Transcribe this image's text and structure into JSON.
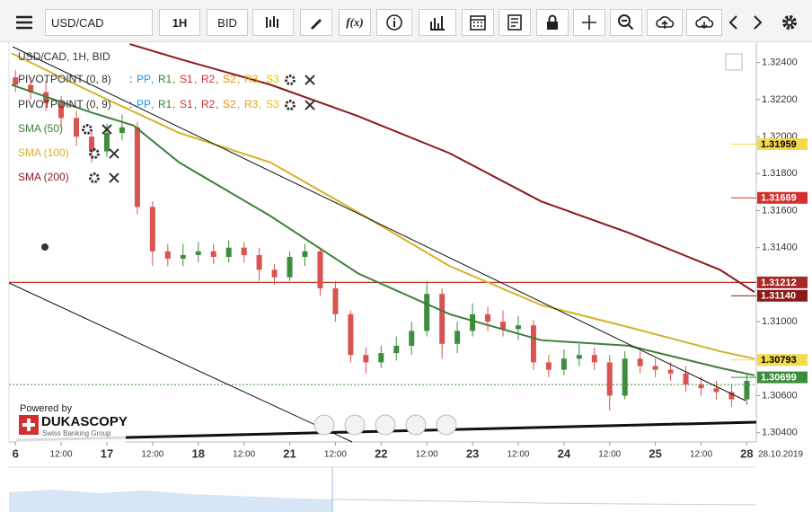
{
  "toolbar": {
    "symbol": "USD/CAD",
    "period": "1H",
    "price_type": "BID",
    "formula": "f(x)"
  },
  "chart_data": {
    "type": "candlestick",
    "title": "USD/CAD, 1H, BID",
    "xlim": [
      -1.7,
      194.5
    ],
    "ylim": [
      1.3035,
      1.3251
    ],
    "xticks": [
      {
        "value": 0,
        "label": "6"
      },
      {
        "value": 12,
        "label": "12:00"
      },
      {
        "value": 24,
        "label": "17"
      },
      {
        "value": 36,
        "label": "12:00"
      },
      {
        "value": 48,
        "label": "18"
      },
      {
        "value": 60,
        "label": "12:00"
      },
      {
        "value": 72,
        "label": "21"
      },
      {
        "value": 84,
        "label": "12:00"
      },
      {
        "value": 96,
        "label": "22"
      },
      {
        "value": 108,
        "label": "12:00"
      },
      {
        "value": 120,
        "label": "23"
      },
      {
        "value": 132,
        "label": "12:00"
      },
      {
        "value": 144,
        "label": "24"
      },
      {
        "value": 156,
        "label": "12:00"
      },
      {
        "value": 168,
        "label": "25"
      },
      {
        "value": 180,
        "label": "12:00"
      },
      {
        "value": 192,
        "label": "28"
      }
    ],
    "x_end_label": "28.10.2019",
    "yticks": [
      {
        "value": 1.324,
        "label": "1.32400"
      },
      {
        "value": 1.322,
        "label": "1.32200"
      },
      {
        "value": 1.32,
        "label": "1.32000"
      },
      {
        "value": 1.318,
        "label": "1.31800"
      },
      {
        "value": 1.316,
        "label": "1.31600"
      },
      {
        "value": 1.314,
        "label": "1.31400"
      },
      {
        "value": 1.31,
        "label": "1.31000"
      },
      {
        "value": 1.306,
        "label": "1.30600"
      },
      {
        "value": 1.304,
        "label": "1.30400"
      }
    ],
    "up_color": "#3c8d3c",
    "down_color": "#d9534f",
    "x": [
      0,
      4,
      8,
      12,
      16,
      20,
      24,
      28,
      32,
      36,
      40,
      44,
      48,
      52,
      56,
      60,
      64,
      68,
      72,
      76,
      80,
      84,
      88,
      92,
      96,
      100,
      104,
      108,
      112,
      116,
      120,
      124,
      128,
      132,
      136,
      140,
      144,
      148,
      152,
      156,
      160,
      164,
      168,
      172,
      176,
      180,
      184,
      188,
      192
    ],
    "open": [
      1.3232,
      1.3228,
      1.3224,
      1.3218,
      1.321,
      1.32,
      1.3192,
      1.3202,
      1.3205,
      1.3162,
      1.3138,
      1.3134,
      1.3136,
      1.3138,
      1.3135,
      1.314,
      1.3136,
      1.3128,
      1.3124,
      1.3135,
      1.3138,
      1.3118,
      1.3104,
      1.3082,
      1.3078,
      1.3083,
      1.3087,
      1.3095,
      1.3115,
      1.3088,
      1.3095,
      1.3104,
      1.31,
      1.3096,
      1.3098,
      1.3078,
      1.3074,
      1.308,
      1.3082,
      1.3078,
      1.306,
      1.308,
      1.3076,
      1.3074,
      1.3072,
      1.3066,
      1.3064,
      1.3062,
      1.3058
    ],
    "high": [
      1.3236,
      1.3232,
      1.323,
      1.3222,
      1.3214,
      1.3204,
      1.3207,
      1.3212,
      1.3208,
      1.3165,
      1.3142,
      1.3142,
      1.3143,
      1.3142,
      1.3144,
      1.3143,
      1.314,
      1.3131,
      1.3138,
      1.3142,
      1.314,
      1.3122,
      1.3106,
      1.3086,
      1.3087,
      1.3092,
      1.31,
      1.3122,
      1.3118,
      1.31,
      1.311,
      1.3108,
      1.3106,
      1.3103,
      1.3101,
      1.3082,
      1.3085,
      1.3088,
      1.3086,
      1.3082,
      1.3084,
      1.3084,
      1.308,
      1.3078,
      1.3076,
      1.307,
      1.3068,
      1.3066,
      1.3072
    ],
    "low": [
      1.3224,
      1.322,
      1.3214,
      1.3205,
      1.3195,
      1.3186,
      1.3189,
      1.3198,
      1.3158,
      1.313,
      1.313,
      1.313,
      1.3132,
      1.3131,
      1.3132,
      1.3132,
      1.3122,
      1.312,
      1.3122,
      1.313,
      1.3114,
      1.31,
      1.3078,
      1.3072,
      1.3075,
      1.3079,
      1.3082,
      1.3092,
      1.308,
      1.3083,
      1.3092,
      1.3095,
      1.3092,
      1.309,
      1.3074,
      1.307,
      1.3071,
      1.3076,
      1.3074,
      1.3052,
      1.3058,
      1.3072,
      1.307,
      1.3068,
      1.3062,
      1.306,
      1.3058,
      1.3054,
      1.3055
    ],
    "close": [
      1.3228,
      1.3224,
      1.3218,
      1.321,
      1.32,
      1.3192,
      1.3202,
      1.3205,
      1.3162,
      1.3138,
      1.3134,
      1.3136,
      1.3138,
      1.3135,
      1.314,
      1.3136,
      1.3128,
      1.3124,
      1.3135,
      1.3138,
      1.3118,
      1.3104,
      1.3082,
      1.3078,
      1.3083,
      1.3087,
      1.3095,
      1.3115,
      1.3088,
      1.3095,
      1.3104,
      1.31,
      1.3096,
      1.3098,
      1.3078,
      1.3074,
      1.308,
      1.3082,
      1.3078,
      1.306,
      1.308,
      1.3076,
      1.3074,
      1.3072,
      1.3066,
      1.3064,
      1.3062,
      1.3058,
      1.3068
    ],
    "pivots": [
      {
        "name": "PIVOTPOINT (0, 8)",
        "prefix": ":",
        "separator": ",",
        "items": [
          "PP",
          "R1",
          "S1",
          "R2",
          "S2",
          "R3",
          "S3"
        ],
        "colors": [
          "#2196f3",
          "#2e7d32",
          "#d32f2f",
          "#d32f2f",
          "#ef8a00",
          "#e0a800",
          "#e6c200"
        ]
      },
      {
        "name": "PIVOTPOINT (0, 9)",
        "prefix": ":",
        "separator": ",",
        "items": [
          "PP",
          "R1",
          "S1",
          "R2",
          "S2",
          "R3",
          "S3"
        ],
        "colors": [
          "#2196f3",
          "#2e7d32",
          "#d32f2f",
          "#d32f2f",
          "#ef8a00",
          "#e0a800",
          "#e6c200"
        ]
      }
    ],
    "series": [
      {
        "name": "SMA (50)",
        "color": "#3f7f3a",
        "x": [
          -1,
          20,
          31,
          43,
          67,
          90,
          114,
          138,
          161,
          185,
          194
        ],
        "values": [
          1.3228,
          1.3213,
          1.3206,
          1.3186,
          1.3157,
          1.3126,
          1.3104,
          1.309,
          1.3087,
          1.3075,
          1.3071
        ]
      },
      {
        "name": "SMA (100)",
        "color": "#d4b22c",
        "x": [
          -1,
          20,
          43,
          67,
          90,
          114,
          138,
          161,
          185,
          194
        ],
        "values": [
          1.3245,
          1.3224,
          1.3202,
          1.3186,
          1.3159,
          1.313,
          1.3109,
          1.3097,
          1.3084,
          1.308
        ]
      },
      {
        "name": "SMA (200)",
        "color": "#8b1a1a",
        "x": [
          30,
          43,
          67,
          90,
          114,
          138,
          161,
          185,
          194
        ],
        "values": [
          1.325,
          1.3242,
          1.3228,
          1.3211,
          1.3191,
          1.3165,
          1.3148,
          1.3128,
          1.3116
        ]
      }
    ],
    "hline": {
      "value": 1.31212,
      "color": "#c0392b"
    },
    "current_price_line": {
      "value": 1.3066,
      "color": "#3c8d3c"
    },
    "price_badges": [
      {
        "value": 1.31959,
        "label": "1.31959",
        "color": "#f3d94b",
        "text_color": "#000"
      },
      {
        "value": 1.31669,
        "label": "1.31669",
        "color": "#d32f2f",
        "text_color": "#fff"
      },
      {
        "value": 1.31212,
        "label": "1.31212",
        "color": "#a52a2a",
        "text_color": "#fff"
      },
      {
        "value": 1.3114,
        "label": "1.31140",
        "color": "#8b1a1a",
        "text_color": "#fff"
      },
      {
        "value": 1.30793,
        "label": "1.30793",
        "color": "#f3d94b",
        "text_color": "#000"
      },
      {
        "value": 1.30699,
        "label": "1.30699",
        "color": "#3c8d3c",
        "text_color": "#fff"
      }
    ],
    "branding": {
      "powered": "Powered by",
      "brand": "DUKASCOPY",
      "tagline": "Swiss Banking Group"
    }
  }
}
